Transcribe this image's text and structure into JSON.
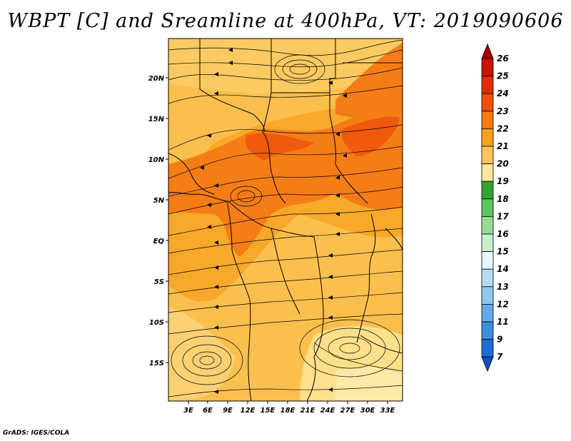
{
  "title": "WBPT [C] and Sreamline at 400hPa, VT: 2019090606",
  "footer": "GrADS: IGES/COLA",
  "map": {
    "lat_labels": [
      "20N",
      "15N",
      "10N",
      "5N",
      "EQ",
      "5S",
      "10S",
      "15S"
    ],
    "lon_labels": [
      "3E",
      "6E",
      "9E",
      "12E",
      "15E",
      "18E",
      "21E",
      "24E",
      "27E",
      "30E",
      "33E"
    ]
  },
  "colorbar": {
    "levels": [
      "26",
      "25",
      "24",
      "23",
      "22",
      "21",
      "20",
      "19",
      "18",
      "17",
      "16",
      "15",
      "14",
      "13",
      "12",
      "11",
      "9",
      "7"
    ],
    "colors": [
      "#a50000",
      "#c81400",
      "#e02d00",
      "#f0500a",
      "#f77a14",
      "#faa01e",
      "#fcc45a",
      "#fde79a",
      "#2fa52f",
      "#5ac85a",
      "#96dc96",
      "#c8f0c8",
      "#e6f8fa",
      "#b4dcf5",
      "#8cc8f0",
      "#64aaeb",
      "#3c8ce1",
      "#1e6ed7",
      "#0a50c8"
    ]
  }
}
